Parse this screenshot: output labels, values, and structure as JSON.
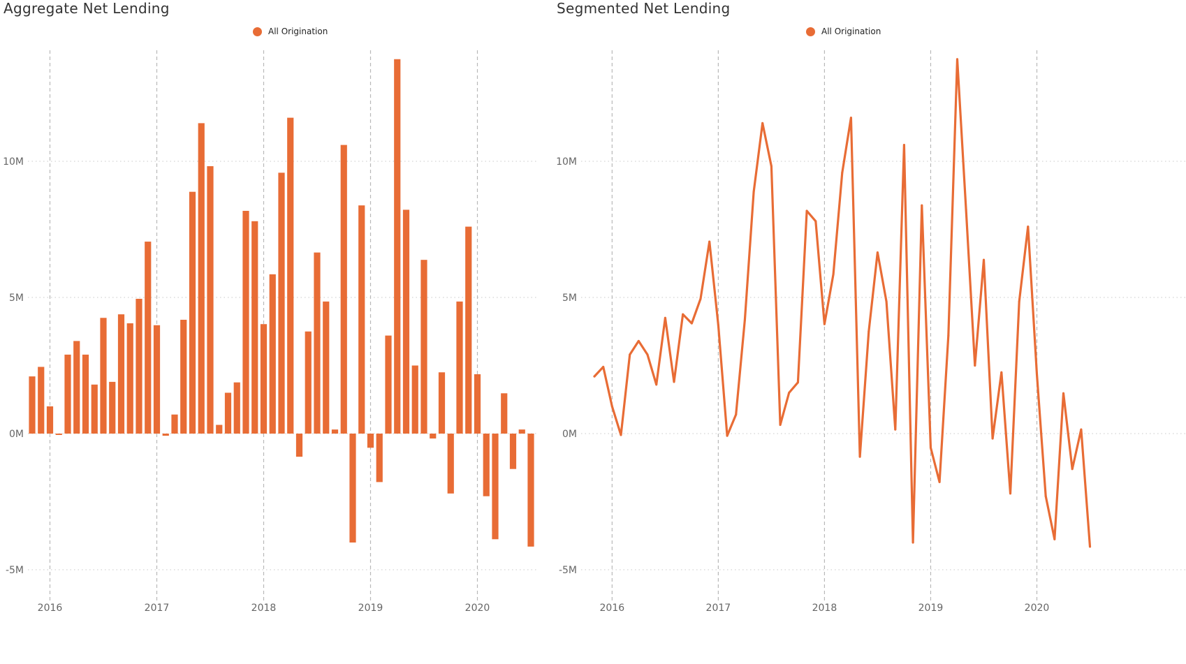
{
  "colors": {
    "series": "#E86C35",
    "gridline": "#c8c8c8",
    "tick_text": "#666666"
  },
  "chart_data": [
    {
      "type": "bar",
      "title": "Aggregate Net Lending",
      "xlabel": "",
      "ylabel": "",
      "legend": {
        "position": "top-center",
        "entries": [
          "All Origination"
        ]
      },
      "y_ticks": [
        "10M",
        "5M",
        "0M",
        "-5M"
      ],
      "y_tick_values": [
        10000000,
        5000000,
        0,
        -5000000
      ],
      "x_ticks": [
        "2016",
        "2017",
        "2018",
        "2019",
        "2020"
      ],
      "ylim": [
        -6000000,
        14300000
      ],
      "grid": true,
      "x_start": "2015-11",
      "series": [
        {
          "name": "All Origination",
          "values": [
            2.1,
            2.45,
            1.0,
            -0.05,
            2.9,
            3.4,
            2.9,
            1.8,
            4.25,
            1.9,
            4.38,
            4.05,
            4.95,
            7.05,
            3.98,
            -0.08,
            0.7,
            4.18,
            8.88,
            11.4,
            9.82,
            0.32,
            1.5,
            1.88,
            8.18,
            7.8,
            4.02,
            5.85,
            9.58,
            11.6,
            -0.85,
            3.75,
            6.65,
            4.85,
            0.15,
            10.6,
            -4.0,
            8.38,
            -0.52,
            -1.78,
            3.6,
            13.75,
            8.22,
            2.5,
            6.38,
            -0.18,
            2.25,
            -2.2,
            4.85,
            7.6,
            2.18,
            -2.3,
            -3.88,
            1.48,
            -1.3,
            0.15,
            -4.15
          ]
        }
      ]
    },
    {
      "type": "line",
      "title": "Segmented Net Lending",
      "xlabel": "",
      "ylabel": "",
      "legend": {
        "position": "top-center",
        "entries": [
          "All Origination"
        ]
      },
      "y_ticks": [
        "10M",
        "5M",
        "0M",
        "-5M"
      ],
      "y_tick_values": [
        10000000,
        5000000,
        0,
        -5000000
      ],
      "x_ticks": [
        "2016",
        "2017",
        "2018",
        "2019",
        "2020"
      ],
      "ylim": [
        -6000000,
        14300000
      ],
      "grid": true,
      "x_start": "2015-11",
      "series": [
        {
          "name": "All Origination",
          "values": [
            2.1,
            2.45,
            1.0,
            -0.05,
            2.9,
            3.4,
            2.9,
            1.8,
            4.25,
            1.9,
            4.38,
            4.05,
            4.95,
            7.05,
            3.98,
            -0.08,
            0.7,
            4.18,
            8.88,
            11.4,
            9.82,
            0.32,
            1.5,
            1.88,
            8.18,
            7.8,
            4.02,
            5.85,
            9.58,
            11.6,
            -0.85,
            3.75,
            6.65,
            4.85,
            0.15,
            10.6,
            -4.0,
            8.38,
            -0.52,
            -1.78,
            3.6,
            13.75,
            8.22,
            2.5,
            6.38,
            -0.18,
            2.25,
            -2.2,
            4.85,
            7.6,
            2.18,
            -2.3,
            -3.88,
            1.48,
            -1.3,
            0.15,
            -4.15
          ]
        }
      ]
    }
  ]
}
